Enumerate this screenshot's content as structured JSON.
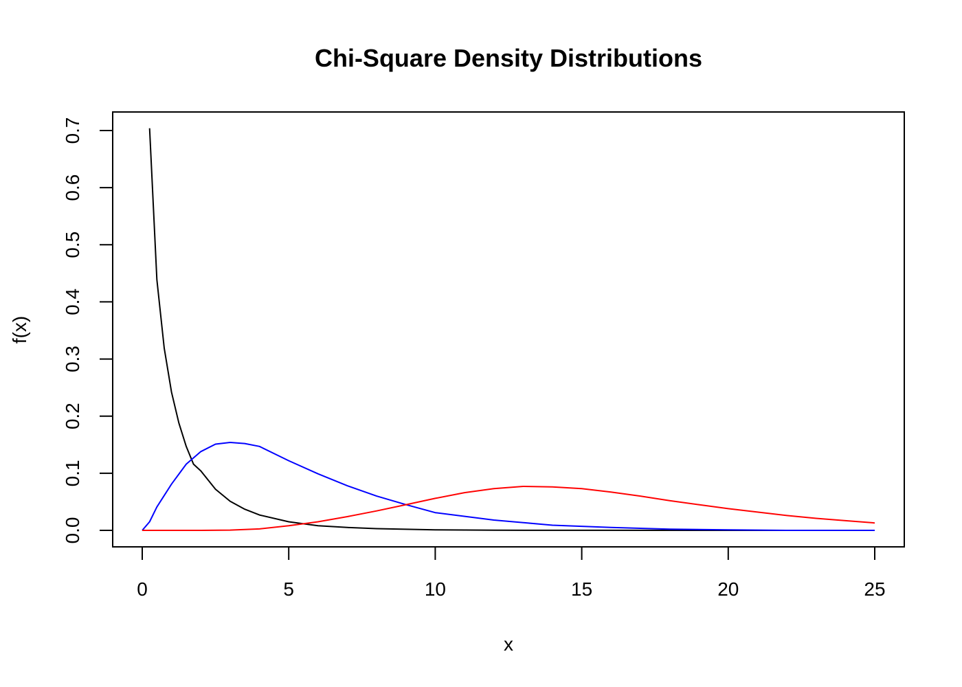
{
  "chart_data": {
    "type": "line",
    "title": "Chi-Square Density Distributions",
    "xlabel": "x",
    "ylabel": "f(x)",
    "xlim": [
      0,
      25
    ],
    "ylim": [
      0,
      0.7
    ],
    "x_ticks": [
      0,
      5,
      10,
      15,
      20,
      25
    ],
    "x_tick_labels": [
      "0",
      "5",
      "10",
      "15",
      "20",
      "25"
    ],
    "y_ticks": [
      0,
      0.1,
      0.2,
      0.3,
      0.4,
      0.5,
      0.6,
      0.7
    ],
    "y_tick_labels": [
      "0.0",
      "0.1",
      "0.2",
      "0.3",
      "0.4",
      "0.5",
      "0.6",
      "0.7"
    ],
    "grid": false,
    "legend": "none",
    "series": [
      {
        "color": "#000000",
        "x": [
          0.25,
          0.5,
          0.75,
          1,
          1.25,
          1.5,
          1.75,
          2,
          2.5,
          3,
          3.5,
          4,
          5,
          6,
          7,
          8,
          10,
          12,
          15,
          20,
          25
        ],
        "y": [
          0.704,
          0.439,
          0.319,
          0.242,
          0.188,
          0.147,
          0.116,
          0.104,
          0.072,
          0.051,
          0.037,
          0.027,
          0.015,
          0.008,
          0.005,
          0.003,
          0.001,
          0.0003,
          0.0001,
          0.0,
          0.0
        ]
      },
      {
        "color": "#0000ff",
        "x": [
          0,
          0.25,
          0.5,
          1,
          1.5,
          2,
          2.5,
          3,
          3.5,
          4,
          5,
          6,
          7,
          8,
          9,
          10,
          12,
          14,
          16,
          18,
          20,
          22,
          25
        ],
        "y": [
          0,
          0.015,
          0.041,
          0.081,
          0.116,
          0.138,
          0.151,
          0.154,
          0.152,
          0.147,
          0.122,
          0.099,
          0.078,
          0.06,
          0.045,
          0.031,
          0.018,
          0.009,
          0.005,
          0.002,
          0.001,
          0.0,
          0.0
        ]
      },
      {
        "color": "#ff0000",
        "x": [
          0,
          1,
          2,
          3,
          4,
          5,
          6,
          7,
          8,
          9,
          10,
          11,
          12,
          13,
          14,
          15,
          16,
          17,
          18,
          19,
          20,
          21,
          22,
          23,
          24,
          25
        ],
        "y": [
          0,
          0.0,
          0.0,
          0.0005,
          0.0025,
          0.008,
          0.015,
          0.024,
          0.034,
          0.045,
          0.056,
          0.066,
          0.073,
          0.077,
          0.076,
          0.073,
          0.067,
          0.06,
          0.052,
          0.045,
          0.038,
          0.032,
          0.026,
          0.021,
          0.017,
          0.013
        ]
      }
    ]
  }
}
